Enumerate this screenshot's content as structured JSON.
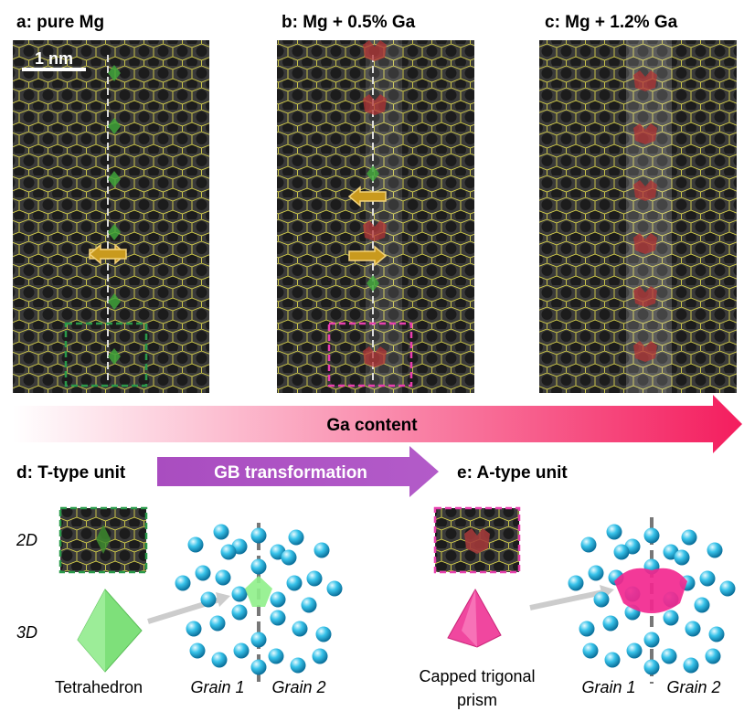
{
  "panels": [
    {
      "label": "a: pure Mg"
    },
    {
      "label": "b: Mg + 0.5% Ga"
    },
    {
      "label": "c: Mg + 1.2% Ga"
    }
  ],
  "scale_bar": "1 nm",
  "gradient_arrow": "Ga content",
  "transformation_arrow": "GB transformation",
  "row_labels": [
    "2D",
    "3D"
  ],
  "units": [
    {
      "label": "d: T-type unit",
      "shape_lines": [
        "Tetrahedron"
      ],
      "grains": [
        "Grain 1",
        "Grain 2"
      ]
    },
    {
      "label": "e: A-type unit",
      "shape_lines": [
        "Capped trigonal",
        "prism"
      ],
      "grains": [
        "Grain 1",
        "Grain 2"
      ]
    }
  ]
}
